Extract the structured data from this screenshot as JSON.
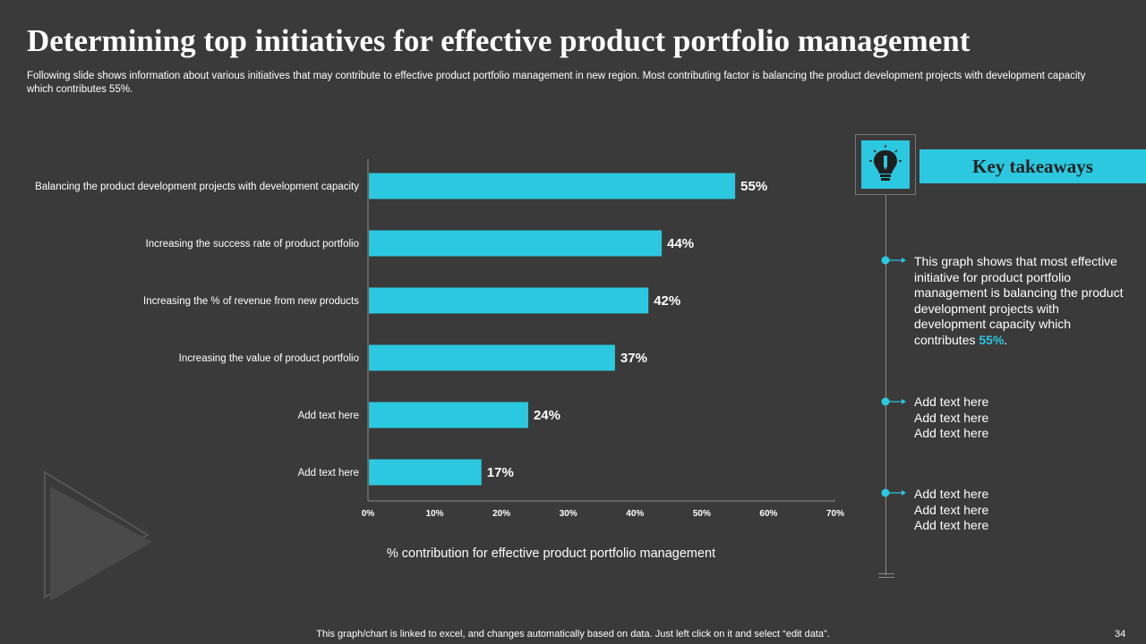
{
  "slide": {
    "title": "Determining top initiatives for effective product portfolio management",
    "subtitle": "Following slide shows information about various initiatives that may contribute to  effective  product portfolio management in new region. Most contributing factor is balancing the product development projects with development capacity which contributes 55%.",
    "footer": "This graph/chart is linked to excel,  and changes automatically based on data. Just left click on it and select “edit data”.",
    "page_number": "34"
  },
  "chart_data": {
    "type": "bar",
    "orientation": "horizontal",
    "title": "",
    "categories": [
      "Balancing the product development projects with development capacity",
      "Increasing the success rate of product portfolio",
      "Increasing the % of revenue from new products",
      "Increasing the value of product portfolio",
      "Add text here",
      "Add text here"
    ],
    "values": [
      55,
      44,
      42,
      37,
      24,
      17
    ],
    "value_labels": [
      "55%",
      "44%",
      "42%",
      "37%",
      "24%",
      "17%"
    ],
    "xlabel": "% contribution for effective product portfolio management",
    "ylabel": "",
    "xlim": [
      0,
      70
    ],
    "ticks": [
      0,
      10,
      20,
      30,
      40,
      50,
      60,
      70
    ],
    "tick_labels": [
      "0%",
      "10%",
      "20%",
      "30%",
      "40%",
      "50%",
      "60%",
      "70%"
    ],
    "grid": false,
    "legend": "none",
    "bar_color": "#2bc8df"
  },
  "takeaways": {
    "heading": "Key takeaways",
    "item1_text": "This graph shows that most effective initiative for product portfolio management is balancing the product development projects with development capacity which contributes ",
    "item1_highlight": "55%",
    "item1_end": ".",
    "item2_lines": [
      "Add text here",
      "Add text here",
      "Add text here"
    ],
    "item3_lines": [
      "Add text here",
      "Add text here",
      "Add text here"
    ]
  },
  "colors": {
    "background": "#3a3a3a",
    "accent": "#2bc8df",
    "text": "#ffffff",
    "line": "#8a8a8a"
  }
}
